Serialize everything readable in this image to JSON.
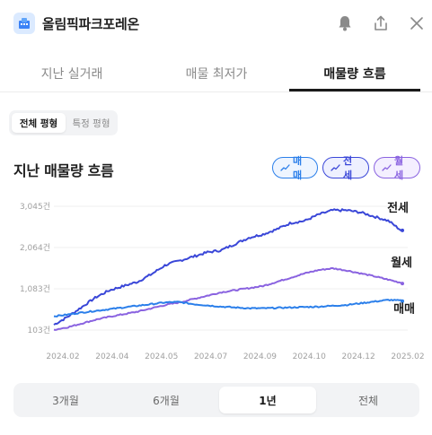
{
  "header": {
    "title": "올림픽파크포레온",
    "icons": [
      "building-icon",
      "bell-icon",
      "share-icon",
      "close-icon"
    ]
  },
  "tabs": [
    {
      "label": "지난 실거래",
      "active": false
    },
    {
      "label": "매물 최저가",
      "active": false
    },
    {
      "label": "매물량 흐름",
      "active": true
    }
  ],
  "area_filter": [
    {
      "label": "전체 평형",
      "active": true
    },
    {
      "label": "특정 평형",
      "active": false
    }
  ],
  "section_title": "지난 매물량 흐름",
  "chips": [
    {
      "label": "매매",
      "color": "#2b7fea",
      "bg": "#eef5ff"
    },
    {
      "label": "전세",
      "color": "#3a47d8",
      "bg": "#eef0ff"
    },
    {
      "label": "월세",
      "color": "#8a63e0",
      "bg": "#f4efff"
    }
  ],
  "period": [
    {
      "label": "3개월",
      "active": false
    },
    {
      "label": "6개월",
      "active": false
    },
    {
      "label": "1년",
      "active": true
    },
    {
      "label": "전체",
      "active": false
    }
  ],
  "chart_data": {
    "type": "line",
    "y_ticks": [
      "3,045건",
      "2,064건",
      "1,083건",
      "103건"
    ],
    "y_tick_values": [
      3045,
      2064,
      1083,
      103
    ],
    "ylim": [
      103,
      3045
    ],
    "x_ticks": [
      "2024.02",
      "2024.04",
      "2024.05",
      "2024.07",
      "2024.09",
      "2024.10",
      "2024.12",
      "2025.02"
    ],
    "grid": true,
    "series": [
      {
        "name": "전세",
        "color": "#3a47d8",
        "values": [
          230,
          420,
          650,
          880,
          1050,
          1150,
          1250,
          1430,
          1650,
          1750,
          1850,
          1950,
          2000,
          2150,
          2300,
          2380,
          2500,
          2650,
          2700,
          2850,
          2950,
          2950,
          2900,
          2800,
          2700,
          2450
        ]
      },
      {
        "name": "월세",
        "color": "#8a63e0",
        "values": [
          110,
          170,
          260,
          350,
          420,
          480,
          540,
          620,
          700,
          760,
          840,
          920,
          1000,
          1050,
          1100,
          1150,
          1250,
          1350,
          1450,
          1530,
          1570,
          1520,
          1450,
          1380,
          1300,
          1220
        ]
      },
      {
        "name": "매매",
        "color": "#2b7fea",
        "values": [
          430,
          470,
          520,
          560,
          600,
          640,
          680,
          720,
          760,
          770,
          720,
          690,
          660,
          640,
          620,
          620,
          630,
          640,
          650,
          660,
          680,
          700,
          740,
          780,
          820,
          800
        ]
      }
    ]
  }
}
